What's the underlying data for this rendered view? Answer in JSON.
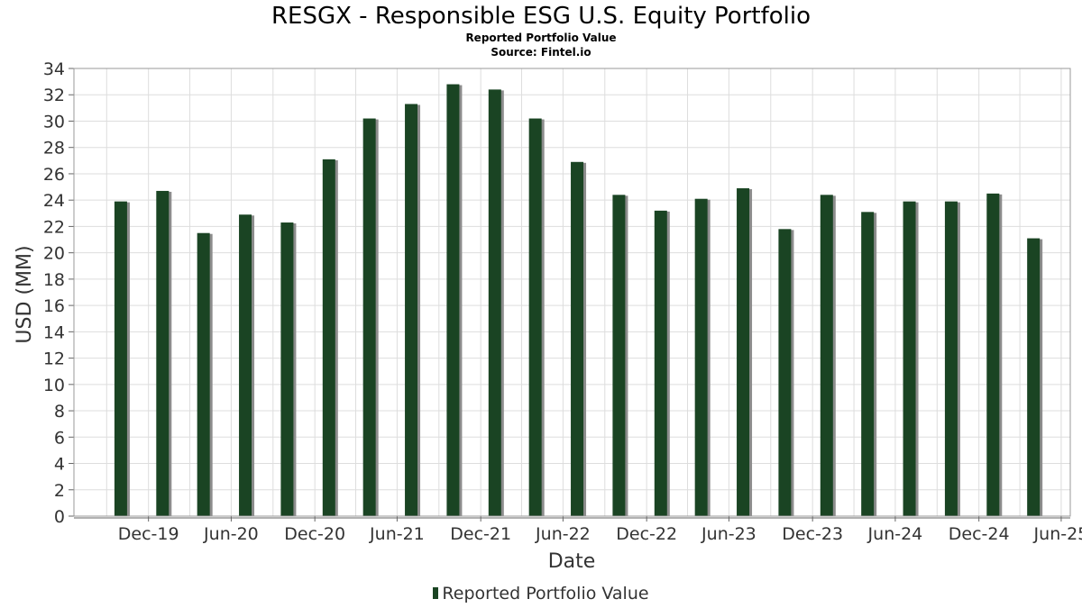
{
  "title": "RESGX - Responsible ESG U.S. Equity Portfolio",
  "subtitle": "Reported Portfolio Value",
  "source": "Source: Fintel.io",
  "colors": {
    "bar": "#1a4423",
    "shadow": "#8c8c8c",
    "grid": "#dddddd",
    "frame": "#999999"
  },
  "legend": {
    "label": "Reported Portfolio Value"
  },
  "chart_data": {
    "type": "bar",
    "title": "RESGX - Responsible ESG U.S. Equity Portfolio",
    "subtitle": "Reported Portfolio Value",
    "xlabel": "Date",
    "ylabel": "USD (MM)",
    "ylim": [
      0,
      34
    ],
    "yticks": [
      0,
      2,
      4,
      6,
      8,
      10,
      12,
      14,
      16,
      18,
      20,
      22,
      24,
      26,
      28,
      30,
      32,
      34
    ],
    "xlim": [
      "2019-07-20",
      "2025-07-20"
    ],
    "xticks": [
      {
        "label": "Dec-19",
        "date": "2019-12-31"
      },
      {
        "label": "Jun-20",
        "date": "2020-06-30"
      },
      {
        "label": "Dec-20",
        "date": "2020-12-31"
      },
      {
        "label": "Jun-21",
        "date": "2021-06-30"
      },
      {
        "label": "Dec-21",
        "date": "2021-12-31"
      },
      {
        "label": "Jun-22",
        "date": "2022-06-30"
      },
      {
        "label": "Dec-22",
        "date": "2022-12-31"
      },
      {
        "label": "Jun-23",
        "date": "2023-06-30"
      },
      {
        "label": "Dec-23",
        "date": "2023-12-31"
      },
      {
        "label": "Jun-24",
        "date": "2024-06-30"
      },
      {
        "label": "Dec-24",
        "date": "2024-12-31"
      },
      {
        "label": "Jun-25",
        "date": "2025-06-30"
      }
    ],
    "grid": true,
    "legend_position": "bottom",
    "series": [
      {
        "name": "Reported Portfolio Value",
        "points": [
          {
            "date": "2019-10-31",
            "value": 23.9
          },
          {
            "date": "2020-01-31",
            "value": 24.7
          },
          {
            "date": "2020-04-30",
            "value": 21.5
          },
          {
            "date": "2020-07-31",
            "value": 22.9
          },
          {
            "date": "2020-10-31",
            "value": 22.3
          },
          {
            "date": "2021-01-31",
            "value": 27.1
          },
          {
            "date": "2021-04-30",
            "value": 30.2
          },
          {
            "date": "2021-07-31",
            "value": 31.3
          },
          {
            "date": "2021-10-31",
            "value": 32.8
          },
          {
            "date": "2022-01-31",
            "value": 32.4
          },
          {
            "date": "2022-04-30",
            "value": 30.2
          },
          {
            "date": "2022-07-31",
            "value": 26.9
          },
          {
            "date": "2022-10-31",
            "value": 24.4
          },
          {
            "date": "2023-01-31",
            "value": 23.2
          },
          {
            "date": "2023-04-30",
            "value": 24.1
          },
          {
            "date": "2023-07-31",
            "value": 24.9
          },
          {
            "date": "2023-10-31",
            "value": 21.8
          },
          {
            "date": "2024-01-31",
            "value": 24.4
          },
          {
            "date": "2024-04-30",
            "value": 23.1
          },
          {
            "date": "2024-07-31",
            "value": 23.9
          },
          {
            "date": "2024-10-31",
            "value": 23.9
          },
          {
            "date": "2025-01-31",
            "value": 24.5
          },
          {
            "date": "2025-04-30",
            "value": 21.1
          }
        ]
      }
    ]
  }
}
